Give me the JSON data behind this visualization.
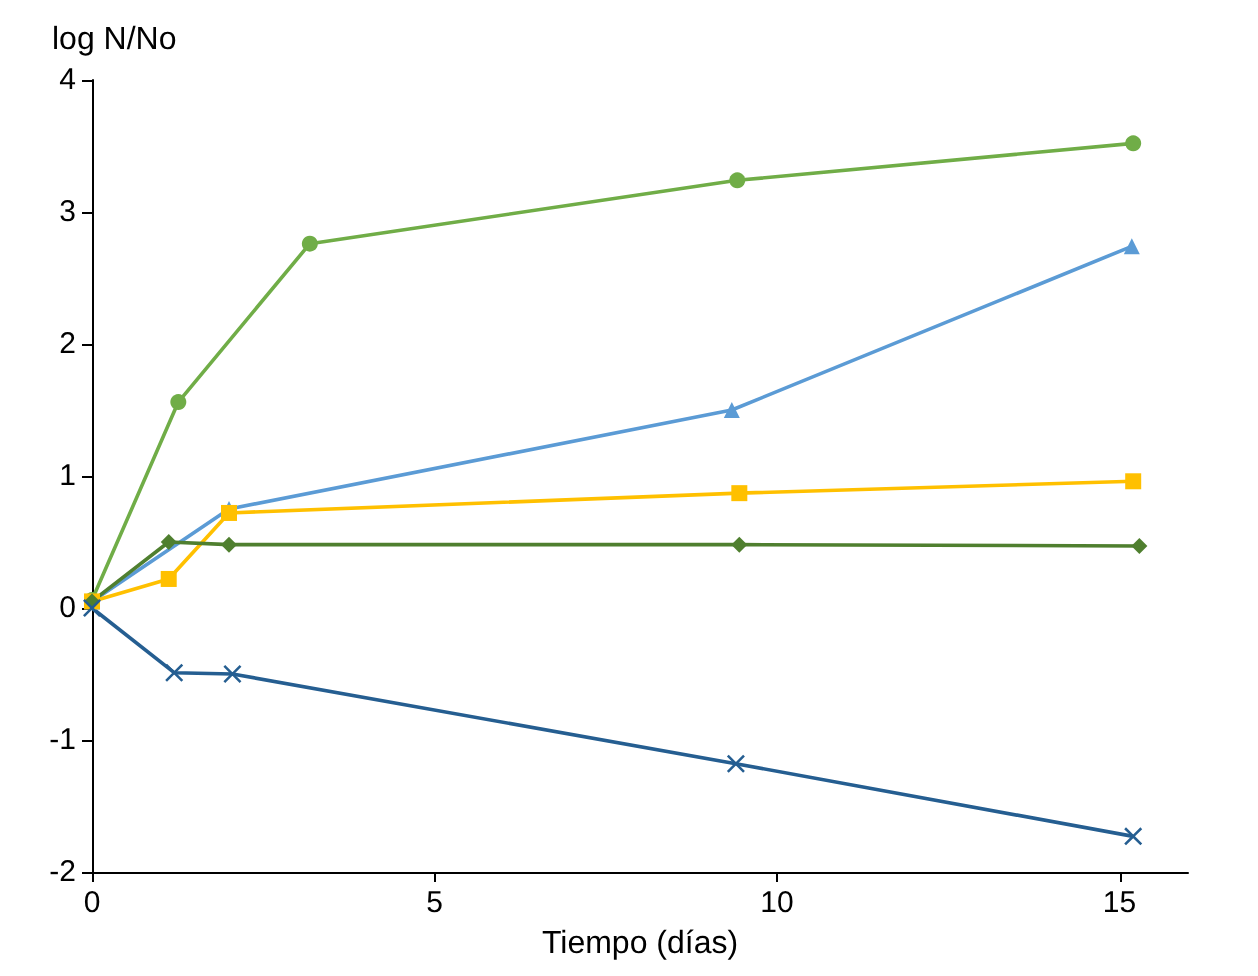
{
  "chart_data": {
    "type": "line",
    "xlabel": "Tiempo (días)",
    "ylabel": "log N/No",
    "xlim": [
      0,
      16
    ],
    "xticks": [
      0,
      5,
      10,
      15
    ],
    "ylim": [
      -2,
      4
    ],
    "yticks": [
      -2,
      -1,
      0,
      1,
      2,
      3,
      4
    ],
    "grid": false,
    "line_style": "solid",
    "series": [
      {
        "color": "#70ad47",
        "marker": "circle",
        "x": [
          0,
          1.26,
          3.18,
          9.42,
          15.2
        ],
        "values": [
          0.06,
          1.56,
          2.76,
          3.24,
          3.52
        ]
      },
      {
        "color": "#5b9bd5",
        "marker": "triangle",
        "x": [
          0,
          2.0,
          9.34,
          15.18
        ],
        "values": [
          0.05,
          0.75,
          1.5,
          2.74
        ]
      },
      {
        "color": "#ffc000",
        "marker": "square",
        "x": [
          0,
          1.12,
          2.0,
          9.45,
          15.2
        ],
        "values": [
          0.05,
          0.22,
          0.72,
          0.87,
          0.96
        ]
      },
      {
        "color": "#4f7f2f",
        "marker": "diamond",
        "x": [
          0,
          1.12,
          2.0,
          9.45,
          15.29
        ],
        "values": [
          0.05,
          0.5,
          0.48,
          0.48,
          0.47
        ]
      },
      {
        "color": "#255e91",
        "marker": "cross",
        "x": [
          0,
          1.2,
          2.05,
          9.4,
          15.2
        ],
        "values": [
          0,
          -0.49,
          -0.5,
          -1.18,
          -1.73
        ]
      }
    ]
  }
}
